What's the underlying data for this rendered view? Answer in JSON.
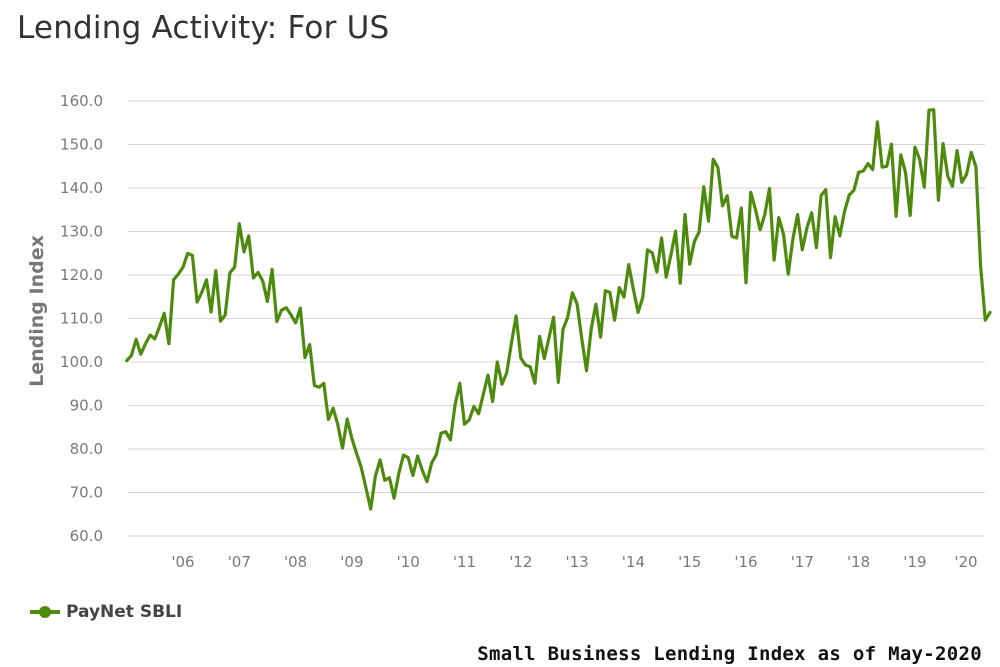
{
  "title": "Lending Activity: For US",
  "footnote": "Small Business Lending Index as of May-2020",
  "colors": {
    "series": "#4e8a0e",
    "grid": "#d6d6d6",
    "tick": "#7a7a7a"
  },
  "chart_data": {
    "type": "line",
    "title": "Lending Activity: For US",
    "ylabel": "Lending Index",
    "xlabel": "",
    "ylim": [
      60,
      160
    ],
    "yticks": [
      "60.0",
      "70.0",
      "80.0",
      "90.0",
      "100.0",
      "110.0",
      "120.0",
      "130.0",
      "140.0",
      "150.0",
      "160.0"
    ],
    "xticks": [
      "'06",
      "'07",
      "'08",
      "'09",
      "'10",
      "'11",
      "'12",
      "'13",
      "'14",
      "'15",
      "'16",
      "'17",
      "'18",
      "'19",
      "'20"
    ],
    "legend": "bottom-left",
    "grid": true,
    "series": [
      {
        "name": "PayNet SBLI",
        "color": "#4e8a0e",
        "start": "2005-01",
        "values": [
          100.3,
          101.5,
          105.2,
          101.8,
          104.2,
          106.2,
          105.3,
          108.1,
          111.2,
          104.2,
          118.9,
          120.2,
          121.8,
          125.0,
          124.5,
          113.8,
          116.0,
          118.9,
          111.5,
          121.0,
          109.4,
          110.8,
          120.5,
          121.8,
          131.8,
          125.3,
          129.0,
          119.3,
          120.6,
          118.6,
          113.9,
          121.3,
          109.3,
          111.9,
          112.5,
          110.9,
          109.0,
          112.4,
          101.0,
          104.0,
          94.6,
          94.2,
          95.1,
          86.8,
          89.4,
          85.6,
          80.2,
          86.9,
          82.4,
          79.0,
          75.7,
          71.0,
          66.2,
          73.8,
          77.5,
          72.8,
          73.4,
          68.7,
          74.4,
          78.6,
          78.0,
          73.9,
          78.4,
          75.1,
          72.5,
          76.8,
          78.7,
          83.6,
          84.0,
          82.1,
          90.2,
          95.1,
          85.7,
          86.7,
          89.8,
          88.1,
          92.6,
          97.0,
          90.9,
          100.0,
          94.9,
          97.5,
          104.3,
          110.6,
          100.9,
          99.3,
          98.9,
          95.1,
          105.9,
          100.8,
          105.6,
          110.3,
          95.3,
          107.5,
          110.3,
          115.9,
          113.3,
          105.3,
          98.0,
          107.6,
          113.3,
          105.7,
          116.4,
          116.0,
          109.6,
          117.1,
          114.9,
          122.4,
          116.7,
          111.4,
          114.9,
          125.8,
          125.1,
          120.7,
          128.5,
          119.5,
          124.6,
          130.1,
          118.1,
          133.9,
          122.5,
          127.7,
          129.9,
          140.3,
          132.4,
          146.6,
          144.7,
          135.9,
          138.2,
          128.9,
          128.5,
          135.4,
          118.2,
          139.0,
          135.2,
          130.4,
          133.9,
          139.9,
          123.4,
          133.2,
          129.4,
          120.2,
          128.3,
          133.9,
          125.8,
          130.9,
          134.3,
          126.3,
          138.3,
          139.6,
          124.0,
          133.4,
          129.0,
          134.6,
          138.4,
          139.5,
          143.6,
          143.9,
          145.6,
          144.2,
          155.2,
          144.8,
          145.0,
          150.1,
          133.5,
          147.6,
          143.6,
          133.7,
          149.4,
          146.6,
          140.2,
          157.9,
          158.0,
          137.2,
          150.2,
          142.8,
          140.4,
          148.6,
          141.3,
          143.1,
          148.2,
          144.9,
          122.0,
          109.6,
          111.4
        ]
      }
    ]
  }
}
